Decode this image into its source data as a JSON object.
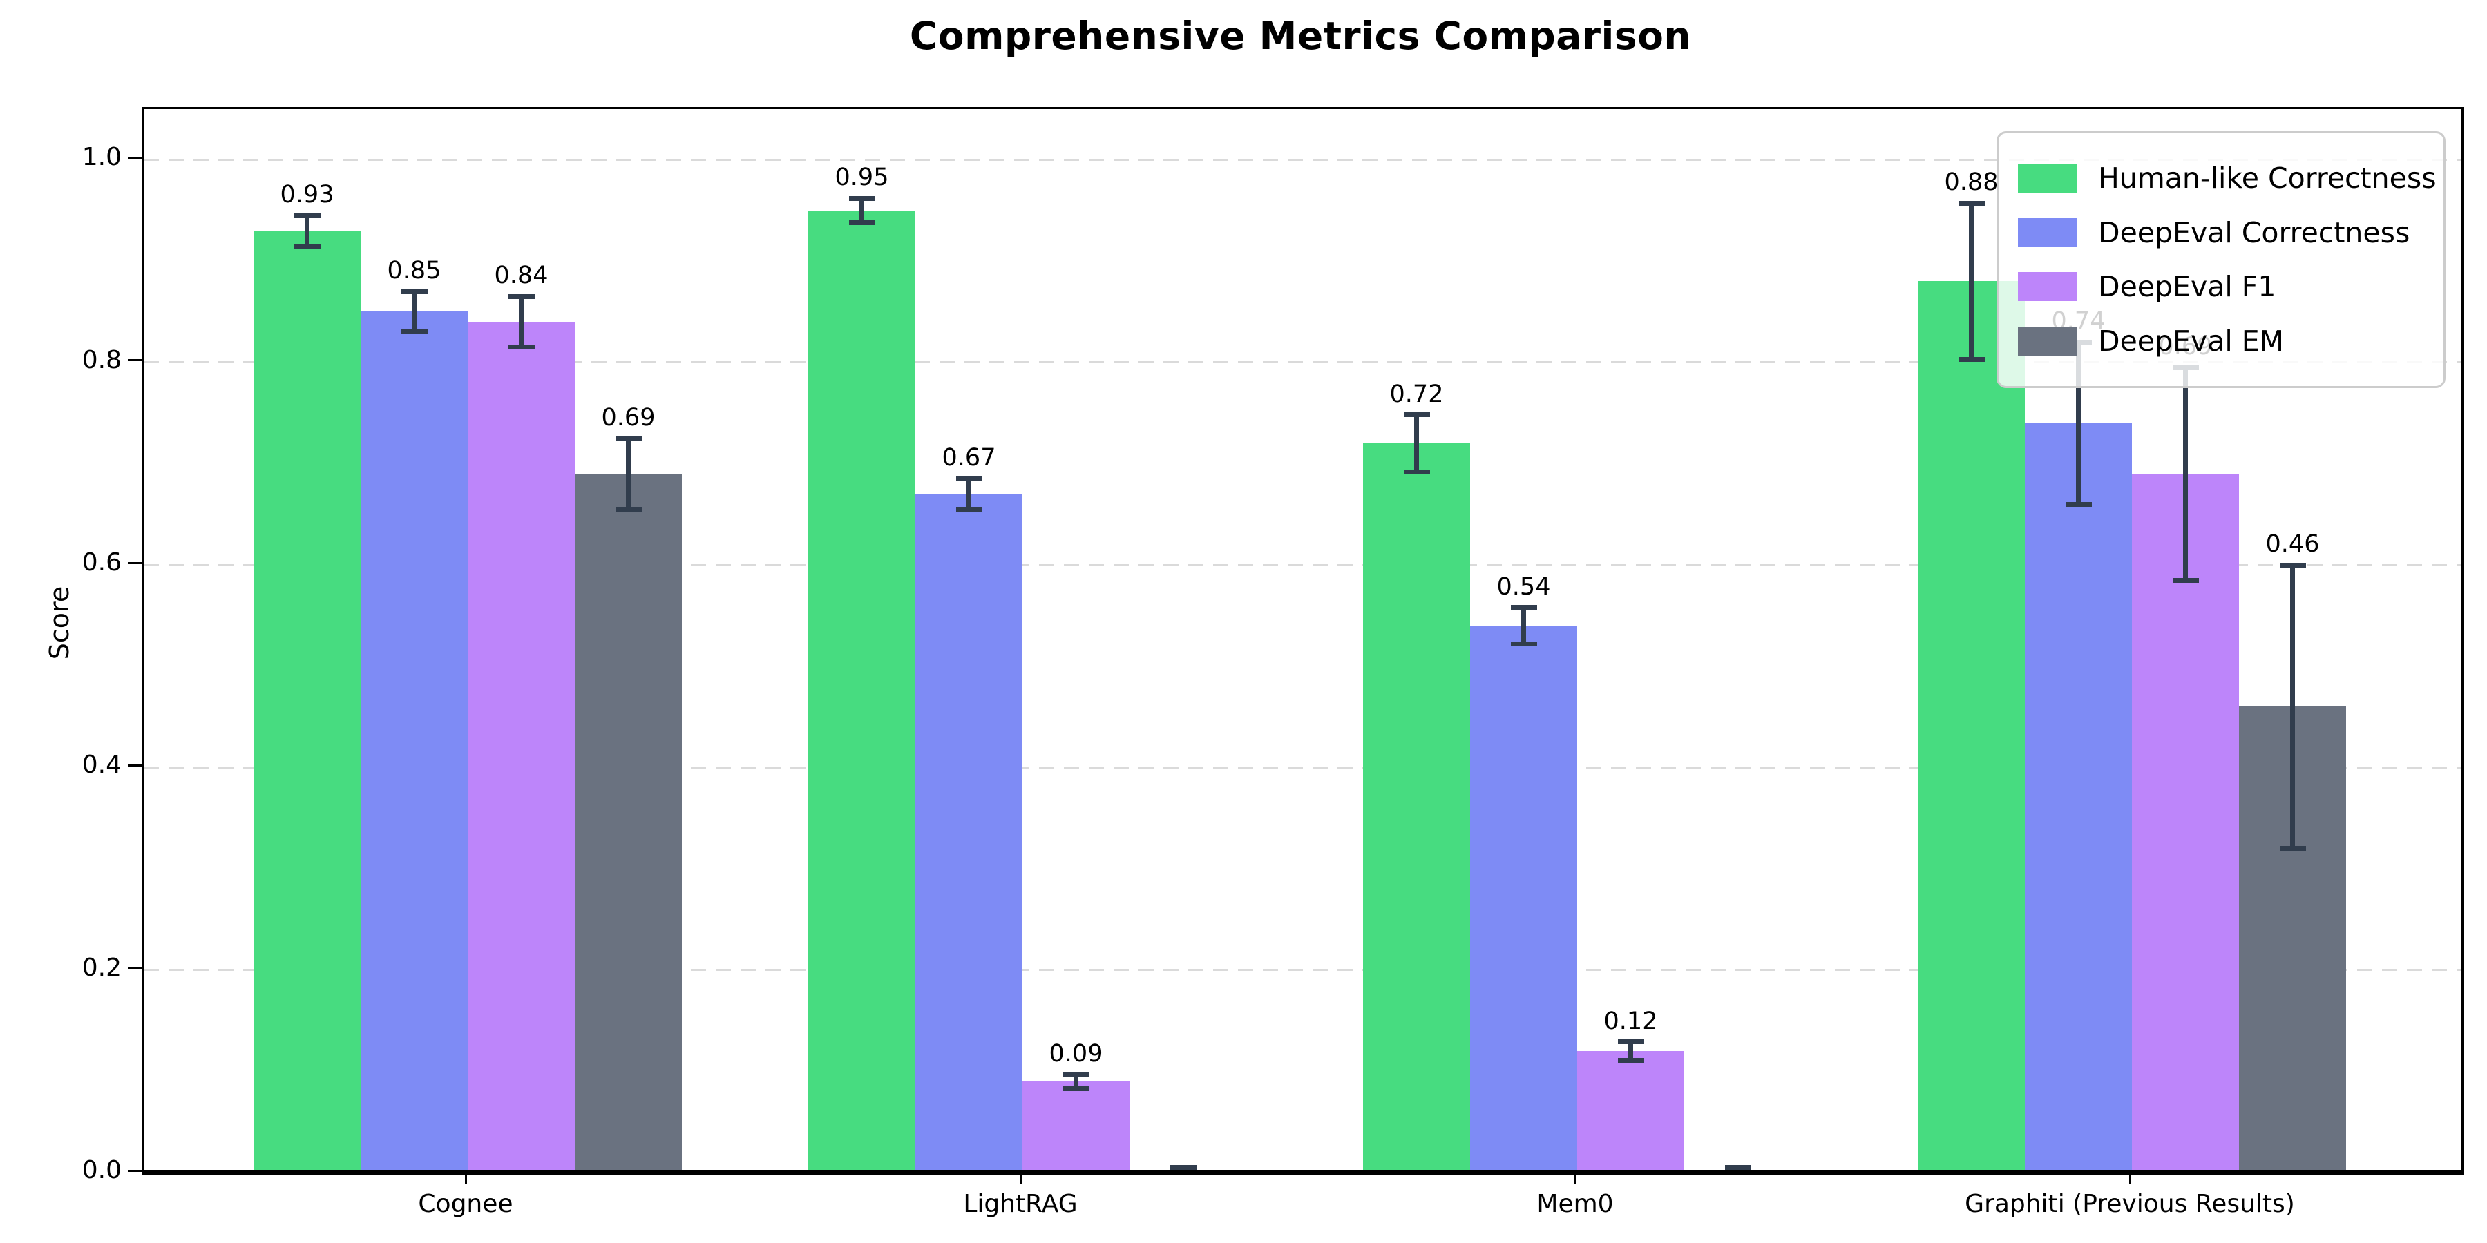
{
  "title": "Comprehensive Metrics Comparison",
  "chart_data": {
    "type": "bar",
    "title": "Comprehensive Metrics Comparison",
    "xlabel": "",
    "ylabel": "Score",
    "categories": [
      "Cognee",
      "LightRAG",
      "Mem0",
      "Graphiti (Previous Results)"
    ],
    "series": [
      {
        "name": "Human-like Correctness",
        "color": "#47DC80",
        "values": [
          0.93,
          0.95,
          0.72,
          0.88
        ],
        "errors": [
          0.015,
          0.012,
          0.028,
          0.077
        ],
        "labels": [
          "0.93",
          "0.95",
          "0.72",
          "0.88"
        ]
      },
      {
        "name": "DeepEval Correctness",
        "color": "#7E8BF5",
        "values": [
          0.85,
          0.67,
          0.54,
          0.74
        ],
        "errors": [
          0.02,
          0.015,
          0.018,
          0.08
        ],
        "labels": [
          "0.85",
          "0.67",
          "0.54",
          "0.74"
        ]
      },
      {
        "name": "DeepEval F1",
        "color": "#BD85FA",
        "values": [
          0.84,
          0.09,
          0.12,
          0.69
        ],
        "errors": [
          0.025,
          0.007,
          0.009,
          0.105
        ],
        "labels": [
          "0.84",
          "0.09",
          "0.12",
          "0.69"
        ]
      },
      {
        "name": "DeepEval EM",
        "color": "#6A7280",
        "values": [
          0.69,
          0.0,
          0.0,
          0.46
        ],
        "errors": [
          0.035,
          0.005,
          0.005,
          0.14
        ],
        "labels": [
          "0.69",
          "",
          "",
          "0.46"
        ]
      }
    ],
    "ylim": [
      0,
      1.05
    ],
    "yticks": [
      "0.0",
      "0.2",
      "0.4",
      "0.6",
      "0.8",
      "1.0"
    ],
    "grid": "dashed horizontal at 0.2 intervals",
    "legend_position": "upper right",
    "errorbar_color": "#313D4D",
    "gridline_color": "#dadada"
  }
}
